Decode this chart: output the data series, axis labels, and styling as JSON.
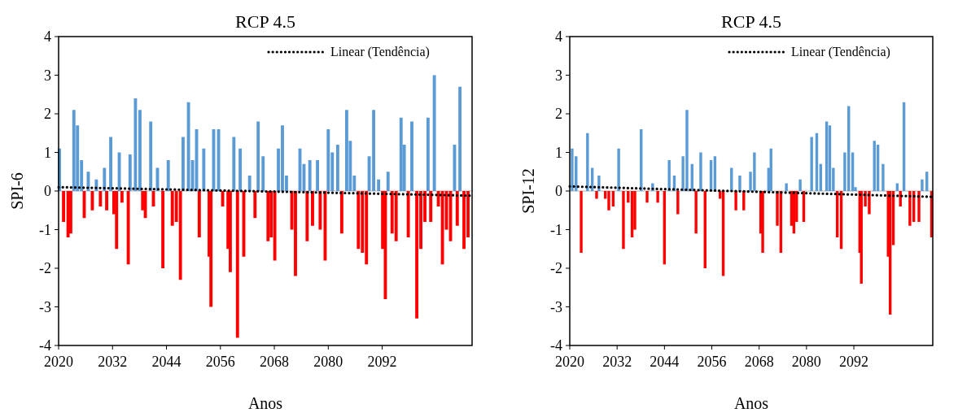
{
  "chart_data": [
    {
      "type": "bar",
      "title": "RCP 4.5",
      "xlabel": "Anos",
      "ylabel": "SPI-6",
      "xlim": [
        2020,
        2112
      ],
      "xticks": [
        2020,
        2032,
        2044,
        2056,
        2068,
        2080,
        2092
      ],
      "ylim": [
        -4,
        4
      ],
      "yticks": [
        -4,
        -3,
        -2,
        -1,
        0,
        1,
        2,
        3,
        4
      ],
      "legend": "top right",
      "line_style": "dotted",
      "series": [
        {
          "color": "#5b9bd5",
          "x": [
            2020.2,
            2023.4,
            2024.2,
            2025.1,
            2026.6,
            2028.4,
            2030.2,
            2031.6,
            2033.5,
            2035.9,
            2037.1,
            2038.1,
            2040.5,
            2042.0,
            2044.4,
            2047.7,
            2048.9,
            2049.8,
            2050.7,
            2052.3,
            2054.5,
            2055.6,
            2059.0,
            2060.4,
            2062.5,
            2064.4,
            2065.5,
            2068.9,
            2069.8,
            2070.7,
            2073.7,
            2074.6,
            2075.9,
            2077.6,
            2080.0,
            2080.9,
            2082.1,
            2084.1,
            2084.9,
            2085.8,
            2089.1,
            2090.1,
            2091.2,
            2093.3,
            2096.2,
            2096.9,
            2098.6,
            2102.2,
            2103.6,
            2108.1,
            2109.3
          ],
          "values": [
            1.1,
            2.1,
            1.7,
            0.8,
            0.5,
            0.3,
            0.6,
            1.4,
            1.0,
            0.95,
            2.4,
            2.1,
            1.8,
            0.6,
            0.8,
            1.4,
            2.3,
            0.8,
            1.6,
            1.1,
            1.6,
            1.6,
            1.4,
            1.1,
            0.4,
            1.8,
            0.9,
            1.1,
            1.7,
            0.4,
            1.1,
            0.7,
            0.8,
            0.8,
            1.6,
            1.0,
            1.2,
            2.1,
            1.3,
            0.4,
            0.9,
            2.1,
            0.3,
            0.5,
            1.9,
            1.2,
            1.8,
            1.9,
            3.0,
            1.2,
            2.7
          ]
        },
        {
          "color": "#ff0000",
          "x": [
            2021.1,
            2022.1,
            2022.7,
            2025.7,
            2027.5,
            2029.3,
            2030.7,
            2032.3,
            2032.9,
            2034.1,
            2035.5,
            2038.7,
            2039.3,
            2041.1,
            2043.2,
            2045.3,
            2046.2,
            2047.1,
            2051.3,
            2053.5,
            2053.9,
            2056.5,
            2057.7,
            2058.2,
            2059.8,
            2061.2,
            2063.7,
            2066.6,
            2067.3,
            2068.1,
            2071.9,
            2072.7,
            2075.3,
            2076.5,
            2078.2,
            2079.3,
            2083.0,
            2086.7,
            2087.6,
            2088.5,
            2092.1,
            2092.7,
            2094.2,
            2095.1,
            2097.8,
            2099.7,
            2100.6,
            2101.5,
            2102.8,
            2104.5,
            2105.4,
            2106.3,
            2107.2,
            2108.7,
            2110.2,
            2111.1
          ],
          "values": [
            -0.8,
            -1.2,
            -1.1,
            -0.7,
            -0.5,
            -0.4,
            -0.5,
            -0.6,
            -1.5,
            -0.3,
            -1.9,
            -0.5,
            -0.7,
            -0.4,
            -2.0,
            -0.9,
            -0.8,
            -2.3,
            -1.2,
            -1.7,
            -3.0,
            -0.4,
            -1.5,
            -2.1,
            -3.8,
            -1.7,
            -0.7,
            -1.3,
            -1.2,
            -1.8,
            -1.0,
            -2.2,
            -1.3,
            -0.9,
            -1.0,
            -1.8,
            -1.1,
            -1.5,
            -1.6,
            -1.9,
            -1.5,
            -2.8,
            -1.1,
            -1.3,
            -1.2,
            -3.3,
            -1.5,
            -0.8,
            -0.8,
            -0.4,
            -1.9,
            -1.0,
            -1.3,
            -0.9,
            -1.5,
            -1.2
          ]
        },
        {
          "type": "line",
          "name": "Linear (Tendência)",
          "color": "#000000",
          "x": [
            2020,
            2112
          ],
          "values": [
            0.1,
            -0.12
          ]
        }
      ]
    },
    {
      "type": "bar",
      "title": "RCP 4.5",
      "xlabel": "Anos",
      "ylabel": "SPI-12",
      "xlim": [
        2020,
        2112
      ],
      "xticks": [
        2020,
        2032,
        2044,
        2056,
        2068,
        2080,
        2092
      ],
      "ylim": [
        -4,
        4
      ],
      "yticks": [
        -4,
        -3,
        -2,
        -1,
        0,
        1,
        2,
        3,
        4
      ],
      "legend": "top right",
      "line_style": "dotted",
      "series": [
        {
          "color": "#5b9bd5",
          "x": [
            2020.6,
            2021.6,
            2024.5,
            2025.7,
            2027.4,
            2032.4,
            2038.1,
            2041.0,
            2045.2,
            2046.5,
            2048.7,
            2049.7,
            2051.0,
            2053.2,
            2055.8,
            2056.8,
            2061.0,
            2063.1,
            2065.8,
            2066.8,
            2070.4,
            2071.0,
            2074.9,
            2078.4,
            2081.3,
            2082.6,
            2083.6,
            2085.1,
            2085.9,
            2086.8,
            2089.7,
            2090.7,
            2091.7,
            2092.4,
            2097.2,
            2098.1,
            2099.4,
            2103.0,
            2104.7,
            2109.3,
            2110.5
          ],
          "values": [
            1.1,
            0.9,
            1.5,
            0.6,
            0.4,
            1.1,
            1.6,
            0.2,
            0.8,
            0.4,
            0.9,
            2.1,
            0.7,
            1.0,
            0.8,
            0.9,
            0.6,
            0.4,
            0.5,
            1.0,
            0.6,
            1.1,
            0.2,
            0.3,
            1.4,
            1.5,
            0.7,
            1.8,
            1.7,
            0.6,
            1.0,
            2.2,
            1.0,
            0.1,
            1.3,
            1.2,
            0.7,
            0.2,
            2.3,
            0.3,
            0.5
          ]
        },
        {
          "color": "#ff0000",
          "x": [
            2022.9,
            2026.8,
            2029.0,
            2029.9,
            2031.0,
            2033.6,
            2034.8,
            2035.8,
            2036.5,
            2039.6,
            2042.3,
            2044.0,
            2047.4,
            2052.0,
            2054.3,
            2058.1,
            2058.9,
            2062.1,
            2064.1,
            2068.4,
            2068.9,
            2072.6,
            2073.5,
            2076.2,
            2076.8,
            2077.5,
            2079.3,
            2087.8,
            2088.8,
            2093.5,
            2093.9,
            2094.9,
            2095.9,
            2100.7,
            2101.2,
            2102.0,
            2103.8,
            2106.2,
            2107.2,
            2108.5,
            2111.7
          ],
          "values": [
            -1.6,
            -0.2,
            -0.2,
            -0.5,
            -0.4,
            -1.5,
            -0.3,
            -1.2,
            -1.0,
            -0.3,
            -0.3,
            -1.9,
            -0.6,
            -1.1,
            -2.0,
            -0.2,
            -2.2,
            -0.5,
            -0.5,
            -1.1,
            -1.6,
            -0.9,
            -1.6,
            -0.9,
            -1.1,
            -0.8,
            -0.8,
            -1.2,
            -1.5,
            -1.6,
            -2.4,
            -0.4,
            -0.6,
            -1.7,
            -3.2,
            -1.4,
            -0.4,
            -0.9,
            -0.8,
            -0.8,
            -1.2
          ]
        },
        {
          "type": "line",
          "name": "Linear (Tendência)",
          "color": "#000000",
          "x": [
            2020,
            2112
          ],
          "values": [
            0.12,
            -0.15
          ]
        }
      ]
    }
  ]
}
